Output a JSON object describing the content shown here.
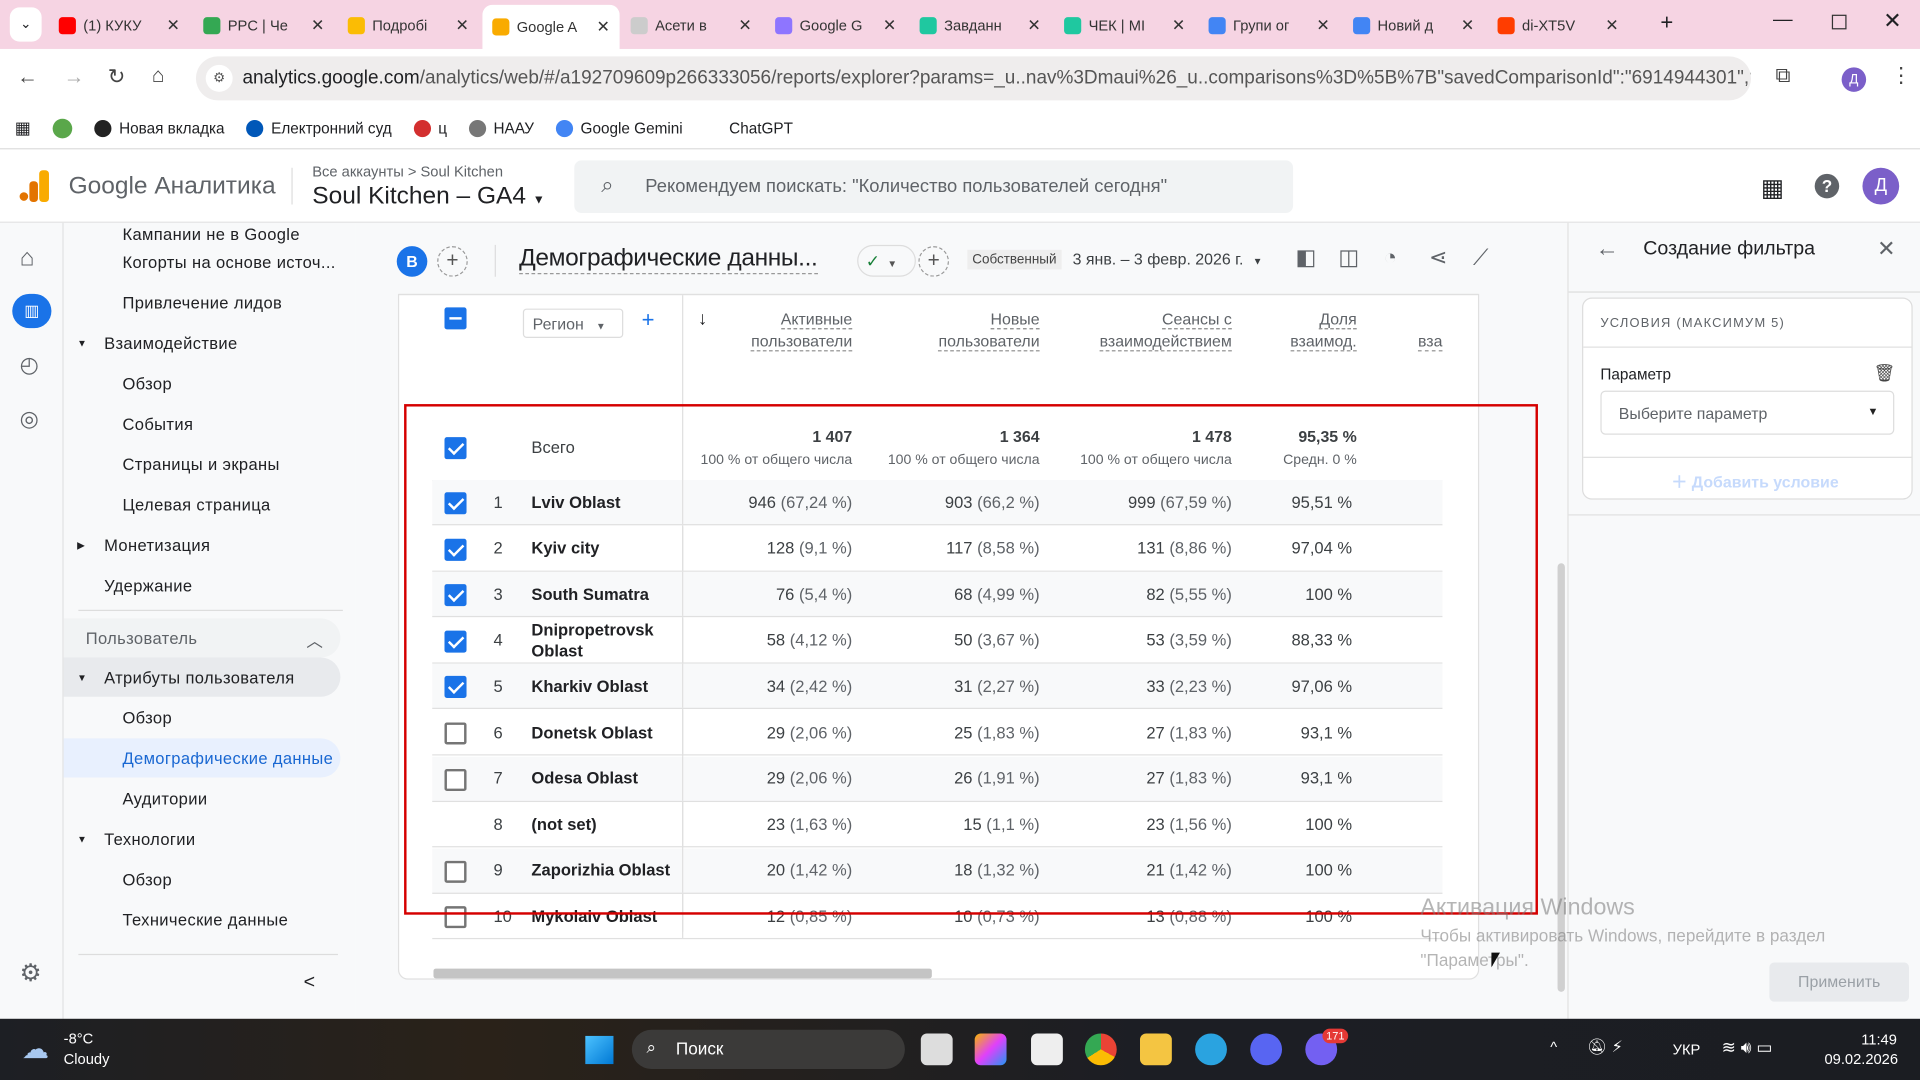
{
  "browser": {
    "tabs": [
      {
        "label": "(1) КУКУ",
        "color": "#ff0000"
      },
      {
        "label": "PPC | Че",
        "color": "#34a853"
      },
      {
        "label": "Подробі",
        "color": "#fbbc04"
      },
      {
        "label": "Google A",
        "color": "#f9ab00"
      },
      {
        "label": "Асети в",
        "color": "#cccccc"
      },
      {
        "label": "Google G",
        "color": "#8e75ff"
      },
      {
        "label": "Завданн",
        "color": "#1fc8a0"
      },
      {
        "label": "ЧЕК | МІ",
        "color": "#1fc8a0"
      },
      {
        "label": "Групи ог",
        "color": "#4285f4"
      },
      {
        "label": "Новий д",
        "color": "#4285f4"
      },
      {
        "label": "di-XT5V",
        "color": "#ff3d00"
      }
    ],
    "url_host": "analytics.google.com",
    "url_path": "/analytics/web/#/a192709609p266333056/reports/explorer?params=_u..nav%3Dmaui%26_u..comparisons%3D%5B%7B\"savedComparisonId\":\"6914944301\",\"na...",
    "profile_initial": "Д",
    "bookmarks": [
      {
        "label": "Новая вкладка",
        "color": "#222"
      },
      {
        "label": "Електронний суд",
        "color": "#0057b8"
      },
      {
        "label": "ц",
        "color": "#d32f2f"
      },
      {
        "label": "НААУ",
        "color": "#777"
      },
      {
        "label": "Google Gemini",
        "color": "#4285f4"
      },
      {
        "label": "ChatGPT",
        "color": "#fff"
      }
    ]
  },
  "ga": {
    "product": "Google Аналитика",
    "breadcrumb": "Все аккаунты > Soul Kitchen",
    "property": "Soul Kitchen – GA4",
    "search_placeholder": "Рекомендуем поискать: \"Количество пользователей сегодня\"",
    "user_initial": "Д",
    "accent": "#1a73e8"
  },
  "nav": {
    "items": [
      {
        "label": "Кампании не в Google",
        "level": 2
      },
      {
        "label": "Когорты на основе источ...",
        "level": 2
      },
      {
        "label": "Привлечение лидов",
        "level": 2
      },
      {
        "label": "Взаимодействие",
        "level": 1,
        "arrow": "down"
      },
      {
        "label": "Обзор",
        "level": 2
      },
      {
        "label": "События",
        "level": 2
      },
      {
        "label": "Страницы и экраны",
        "level": 2
      },
      {
        "label": "Целевая страница",
        "level": 2
      },
      {
        "label": "Монетизация",
        "level": 1,
        "arrow": "right"
      },
      {
        "label": "Удержание",
        "level": 1
      }
    ],
    "section": "Пользователь",
    "items2": [
      {
        "label": "Атрибуты пользователя",
        "level": 1,
        "arrow": "down",
        "state": "expanded"
      },
      {
        "label": "Обзор",
        "level": 2
      },
      {
        "label": "Демографические данные",
        "level": 2,
        "state": "selected"
      },
      {
        "label": "Аудитории",
        "level": 2
      },
      {
        "label": "Технологии",
        "level": 1,
        "arrow": "down"
      },
      {
        "label": "Обзор",
        "level": 2
      },
      {
        "label": "Технические данные",
        "level": 2
      }
    ]
  },
  "report": {
    "comparison_badge": "B",
    "title": "Демографические данны...",
    "date_label": "Собственный",
    "date_range": "3 янв. – 3 февр. 2026 г.",
    "dimension": "Регион",
    "columns": [
      {
        "l1": "Активные",
        "l2": "пользователи"
      },
      {
        "l1": "Новые",
        "l2": "пользователи"
      },
      {
        "l1": "Сеансы с",
        "l2": "взаимодействием"
      },
      {
        "l1": "Доля",
        "l2": "взаимод."
      },
      {
        "l1": "",
        "l2": "вза"
      }
    ],
    "total": {
      "label": "Всего",
      "checked": true,
      "values": [
        "1 407",
        "1 364",
        "1 478",
        "95,35 %"
      ],
      "subs": [
        "100 % от общего числа",
        "100 % от общего числа",
        "100 % от общего числа",
        "Средн. 0 %"
      ]
    },
    "rows": [
      {
        "n": "1",
        "name": "Lviv Oblast",
        "checked": true,
        "v": [
          [
            "946",
            "(67,24 %)"
          ],
          [
            "903",
            "(66,2 %)"
          ],
          [
            "999",
            "(67,59 %)"
          ],
          [
            "95,51 %",
            ""
          ]
        ]
      },
      {
        "n": "2",
        "name": "Kyiv city",
        "checked": true,
        "v": [
          [
            "128",
            "(9,1 %)"
          ],
          [
            "117",
            "(8,58 %)"
          ],
          [
            "131",
            "(8,86 %)"
          ],
          [
            "97,04 %",
            ""
          ]
        ]
      },
      {
        "n": "3",
        "name": "South Sumatra",
        "checked": true,
        "v": [
          [
            "76",
            "(5,4 %)"
          ],
          [
            "68",
            "(4,99 %)"
          ],
          [
            "82",
            "(5,55 %)"
          ],
          [
            "100 %",
            ""
          ]
        ]
      },
      {
        "n": "4",
        "name": "Dnipropetrovsk Oblast",
        "checked": true,
        "v": [
          [
            "58",
            "(4,12 %)"
          ],
          [
            "50",
            "(3,67 %)"
          ],
          [
            "53",
            "(3,59 %)"
          ],
          [
            "88,33 %",
            ""
          ]
        ]
      },
      {
        "n": "5",
        "name": "Kharkiv Oblast",
        "checked": true,
        "v": [
          [
            "34",
            "(2,42 %)"
          ],
          [
            "31",
            "(2,27 %)"
          ],
          [
            "33",
            "(2,23 %)"
          ],
          [
            "97,06 %",
            ""
          ]
        ]
      },
      {
        "n": "6",
        "name": "Donetsk Oblast",
        "checked": false,
        "v": [
          [
            "29",
            "(2,06 %)"
          ],
          [
            "25",
            "(1,83 %)"
          ],
          [
            "27",
            "(1,83 %)"
          ],
          [
            "93,1 %",
            ""
          ]
        ]
      },
      {
        "n": "7",
        "name": "Odesa Oblast",
        "checked": false,
        "v": [
          [
            "29",
            "(2,06 %)"
          ],
          [
            "26",
            "(1,91 %)"
          ],
          [
            "27",
            "(1,83 %)"
          ],
          [
            "93,1 %",
            ""
          ]
        ]
      },
      {
        "n": "8",
        "name": "(not set)",
        "checked": null,
        "v": [
          [
            "23",
            "(1,63 %)"
          ],
          [
            "15",
            "(1,1 %)"
          ],
          [
            "23",
            "(1,56 %)"
          ],
          [
            "100 %",
            ""
          ]
        ]
      },
      {
        "n": "9",
        "name": "Zaporizhia Oblast",
        "checked": false,
        "v": [
          [
            "20",
            "(1,42 %)"
          ],
          [
            "18",
            "(1,32 %)"
          ],
          [
            "21",
            "(1,42 %)"
          ],
          [
            "100 %",
            ""
          ]
        ]
      },
      {
        "n": "10",
        "name": "Mykolaiv Oblast",
        "checked": false,
        "v": [
          [
            "12",
            "(0,85 %)"
          ],
          [
            "10",
            "(0,73 %)"
          ],
          [
            "13",
            "(0,88 %)"
          ],
          [
            "100 %",
            ""
          ]
        ]
      }
    ],
    "highlight_color": "#d50000"
  },
  "filter_panel": {
    "title": "Создание фильтра",
    "conditions_label": "УСЛОВИЯ (МАКСИМУМ 5)",
    "param_label": "Параметр",
    "param_placeholder": "Выберите параметр",
    "add_condition": "Добавить условие",
    "apply": "Применить"
  },
  "watermark": {
    "title": "Активация Windows",
    "text1": "Чтобы активировать Windows, перейдите в раздел",
    "text2": "\"Параметры\"."
  },
  "taskbar": {
    "temp": "-8°C",
    "weather": "Cloudy",
    "search": "Поиск",
    "lang": "УКР",
    "time": "11:49",
    "date": "09.02.2026",
    "viber_badge": "171"
  }
}
